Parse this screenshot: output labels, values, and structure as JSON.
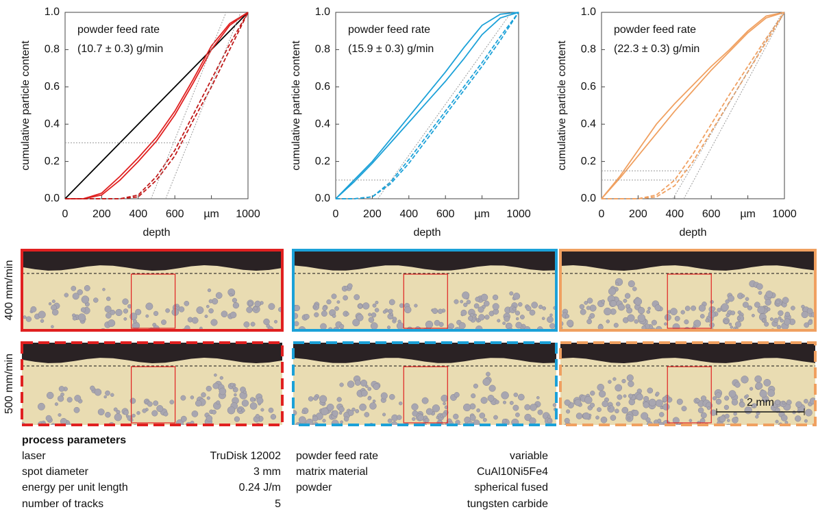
{
  "chart_data": [
    {
      "type": "line",
      "xlabel": "depth",
      "ylabel": "cumulative particle content",
      "annotation": [
        "powder feed rate",
        "(10.7 ± 0.3) g/min"
      ],
      "xlim": [
        0,
        1000
      ],
      "ylim": [
        0,
        1
      ],
      "xticks": [
        0,
        200,
        400,
        600,
        {
          "value": 800,
          "label": "µm"
        },
        1000
      ],
      "yticks": [
        {
          "value": 0,
          "label": "0.0"
        },
        0.2,
        0.4,
        0.6,
        0.8,
        {
          "value": 1,
          "label": "1.0"
        }
      ],
      "series": [
        {
          "color": "#000000",
          "style": "solid",
          "x": [
            0,
            1000
          ],
          "values": [
            0,
            1
          ]
        },
        {
          "color": "#e02020",
          "style": "solid",
          "x": [
            0,
            100,
            200,
            300,
            400,
            500,
            600,
            700,
            800,
            900,
            1000
          ],
          "values": [
            0,
            0,
            0.02,
            0.1,
            0.2,
            0.31,
            0.45,
            0.62,
            0.8,
            0.93,
            1
          ]
        },
        {
          "color": "#e02020",
          "style": "solid",
          "x": [
            0,
            100,
            200,
            300,
            400,
            500,
            600,
            700,
            800,
            900,
            1000
          ],
          "values": [
            0,
            0,
            0.03,
            0.12,
            0.22,
            0.33,
            0.47,
            0.64,
            0.82,
            0.94,
            1
          ]
        },
        {
          "color": "#c01818",
          "style": "dashed",
          "x": [
            0,
            100,
            200,
            300,
            400,
            500,
            600,
            700,
            800,
            900,
            1000
          ],
          "values": [
            0,
            0,
            0,
            0,
            0.02,
            0.12,
            0.26,
            0.45,
            0.64,
            0.83,
            1
          ]
        },
        {
          "color": "#c01818",
          "style": "dashed",
          "x": [
            0,
            100,
            200,
            300,
            400,
            500,
            600,
            700,
            800,
            900,
            1000
          ],
          "values": [
            0,
            0,
            0,
            0,
            0.01,
            0.1,
            0.23,
            0.42,
            0.6,
            0.8,
            1
          ]
        },
        {
          "color": "#999999",
          "style": "dotted",
          "x": [
            0,
            680
          ],
          "values": [
            0.3,
            0.3
          ]
        },
        {
          "color": "#999999",
          "style": "dotted",
          "x": [
            470,
            880
          ],
          "values": [
            0,
            1
          ]
        },
        {
          "color": "#999999",
          "style": "dotted",
          "x": [
            550,
            960
          ],
          "values": [
            0,
            1
          ]
        }
      ]
    },
    {
      "type": "line",
      "xlabel": "depth",
      "ylabel": "cumulative particle content",
      "annotation": [
        "powder feed rate",
        "(15.9 ± 0.3) g/min"
      ],
      "xlim": [
        0,
        1000
      ],
      "ylim": [
        0,
        1
      ],
      "xticks": [
        0,
        200,
        400,
        600,
        {
          "value": 800,
          "label": "µm"
        },
        1000
      ],
      "yticks": [
        {
          "value": 0,
          "label": "0.0"
        },
        0.2,
        0.4,
        0.6,
        0.8,
        {
          "value": 1,
          "label": "1.0"
        }
      ],
      "series": [
        {
          "color": "#1ba1d8",
          "style": "solid",
          "x": [
            0,
            100,
            200,
            300,
            400,
            500,
            600,
            700,
            800,
            900,
            1000
          ],
          "values": [
            0,
            0.1,
            0.2,
            0.32,
            0.44,
            0.56,
            0.68,
            0.81,
            0.93,
            0.99,
            1
          ]
        },
        {
          "color": "#1ba1d8",
          "style": "solid",
          "x": [
            0,
            100,
            200,
            300,
            400,
            500,
            600,
            700,
            800,
            900,
            1000
          ],
          "values": [
            0,
            0.09,
            0.19,
            0.3,
            0.41,
            0.52,
            0.63,
            0.75,
            0.88,
            0.97,
            1
          ]
        },
        {
          "color": "#1ba1d8",
          "style": "dashed",
          "x": [
            0,
            100,
            200,
            300,
            400,
            500,
            600,
            700,
            800,
            900,
            1000
          ],
          "values": [
            0,
            0,
            0.01,
            0.09,
            0.21,
            0.34,
            0.47,
            0.6,
            0.73,
            0.87,
            1
          ]
        },
        {
          "color": "#1ba1d8",
          "style": "dashed",
          "x": [
            0,
            100,
            200,
            300,
            400,
            500,
            600,
            700,
            800,
            900,
            1000
          ],
          "values": [
            0,
            0,
            0.01,
            0.08,
            0.19,
            0.32,
            0.45,
            0.58,
            0.71,
            0.85,
            1
          ]
        },
        {
          "color": "#999999",
          "style": "dotted",
          "x": [
            0,
            290
          ],
          "values": [
            0.1,
            0.1
          ]
        },
        {
          "color": "#999999",
          "style": "dotted",
          "x": [
            230,
            960
          ],
          "values": [
            0,
            1
          ]
        }
      ]
    },
    {
      "type": "line",
      "xlabel": "depth",
      "ylabel": "cumulative particle content",
      "annotation": [
        "powder feed rate",
        "(22.3 ± 0.3) g/min"
      ],
      "xlim": [
        0,
        1000
      ],
      "ylim": [
        0,
        1
      ],
      "xticks": [
        0,
        200,
        400,
        600,
        {
          "value": 800,
          "label": "µm"
        },
        1000
      ],
      "yticks": [
        {
          "value": 0,
          "label": "0.0"
        },
        0.2,
        0.4,
        0.6,
        0.8,
        {
          "value": 1,
          "label": "1.0"
        }
      ],
      "series": [
        {
          "color": "#f0a060",
          "style": "solid",
          "x": [
            0,
            100,
            200,
            300,
            400,
            500,
            600,
            700,
            800,
            900,
            1000
          ],
          "values": [
            0,
            0.12,
            0.26,
            0.4,
            0.51,
            0.61,
            0.71,
            0.8,
            0.9,
            0.98,
            1
          ]
        },
        {
          "color": "#f0a060",
          "style": "solid",
          "x": [
            0,
            100,
            200,
            300,
            400,
            500,
            600,
            700,
            800,
            900,
            1000
          ],
          "values": [
            0,
            0.11,
            0.23,
            0.35,
            0.47,
            0.58,
            0.69,
            0.79,
            0.89,
            0.97,
            1
          ]
        },
        {
          "color": "#f0a060",
          "style": "dashed",
          "x": [
            0,
            100,
            200,
            300,
            400,
            500,
            600,
            700,
            800,
            900,
            1000
          ],
          "values": [
            0,
            0,
            0,
            0.02,
            0.1,
            0.24,
            0.4,
            0.56,
            0.71,
            0.86,
            1
          ]
        },
        {
          "color": "#f0a060",
          "style": "dashed",
          "x": [
            0,
            100,
            200,
            300,
            400,
            500,
            600,
            700,
            800,
            900,
            1000
          ],
          "values": [
            0,
            0,
            0,
            0.01,
            0.07,
            0.2,
            0.36,
            0.52,
            0.68,
            0.84,
            1
          ]
        },
        {
          "color": "#999999",
          "style": "dotted",
          "x": [
            0,
            480
          ],
          "values": [
            0.15,
            0.15
          ]
        },
        {
          "color": "#999999",
          "style": "dotted",
          "x": [
            0,
            440
          ],
          "values": [
            0.1,
            0.1
          ]
        },
        {
          "color": "#999999",
          "style": "dotted",
          "x": [
            390,
            990
          ],
          "values": [
            0,
            1
          ]
        },
        {
          "color": "#999999",
          "style": "dotted",
          "x": [
            450,
            1000
          ],
          "values": [
            0,
            1
          ]
        }
      ]
    }
  ],
  "micrographs": {
    "row_labels": [
      "400 mm/min",
      "500 mm/min"
    ],
    "scale_bar": "2 mm"
  },
  "process_parameters": {
    "title": "process parameters",
    "left_rows": [
      [
        "laser",
        "TruDisk 12002"
      ],
      [
        "spot diameter",
        "3 mm"
      ],
      [
        "energy per unit length",
        "0.24 J/m"
      ],
      [
        "number of tracks",
        "5"
      ]
    ],
    "right_rows": [
      [
        "powder feed rate",
        "variable"
      ],
      [
        "matrix material",
        "CuAl10Ni5Fe4"
      ],
      [
        "powder",
        [
          "spherical fused",
          "tungsten carbide"
        ]
      ]
    ]
  }
}
